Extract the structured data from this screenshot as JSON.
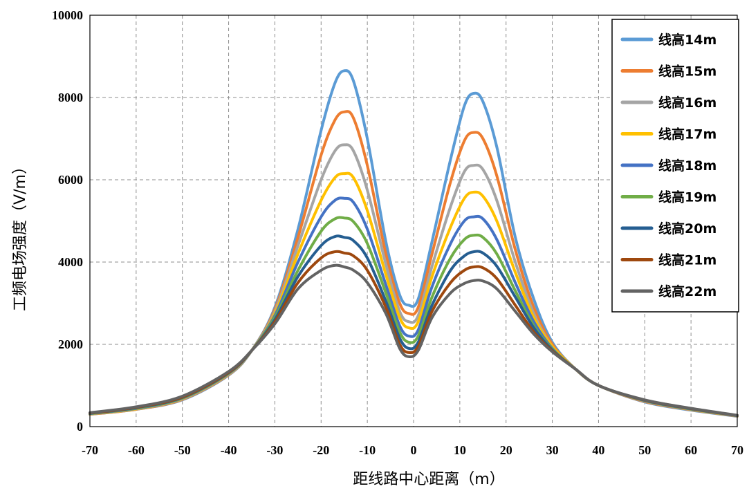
{
  "chart_data": {
    "type": "line",
    "title": "",
    "xlabel": "距线路中心距离（m）",
    "ylabel": "工频电场强度（V/m）",
    "xlim": [
      -70,
      70
    ],
    "ylim": [
      0,
      10000
    ],
    "xticks": [
      -70,
      -60,
      -50,
      -40,
      -30,
      -20,
      -10,
      0,
      10,
      20,
      30,
      40,
      50,
      60,
      70
    ],
    "yticks": [
      0,
      2000,
      4000,
      6000,
      8000,
      10000
    ],
    "grid": true,
    "legend_position": "top-right",
    "x": [
      -70,
      -60,
      -50,
      -40,
      -35,
      -30,
      -25,
      -20,
      -17,
      -15,
      -13,
      -10,
      -6,
      -3,
      -1,
      1,
      4,
      8,
      11,
      13,
      15,
      18,
      22,
      26,
      30,
      35,
      40,
      50,
      60,
      70
    ],
    "series": [
      {
        "name": "线高14m",
        "color": "#5B9BD5",
        "values": [
          300,
          420,
          650,
          1250,
          1850,
          2900,
          4800,
          7200,
          8350,
          8650,
          8400,
          7000,
          4500,
          3200,
          2950,
          3100,
          4500,
          6500,
          7800,
          8100,
          7900,
          6800,
          4600,
          3100,
          2050,
          1400,
          1000,
          600,
          400,
          250
        ]
      },
      {
        "name": "线高15m",
        "color": "#ED7D31",
        "values": [
          300,
          420,
          660,
          1260,
          1850,
          2850,
          4600,
          6600,
          7450,
          7650,
          7500,
          6350,
          4200,
          3000,
          2750,
          2900,
          4200,
          5950,
          6950,
          7150,
          7000,
          6100,
          4300,
          2900,
          2000,
          1400,
          1000,
          610,
          410,
          255
        ]
      },
      {
        "name": "线高16m",
        "color": "#A5A5A5",
        "values": [
          305,
          425,
          670,
          1270,
          1850,
          2800,
          4400,
          6000,
          6700,
          6850,
          6700,
          5750,
          3950,
          2800,
          2550,
          2700,
          3900,
          5350,
          6200,
          6350,
          6250,
          5500,
          4000,
          2750,
          1950,
          1400,
          1000,
          620,
          415,
          260
        ]
      },
      {
        "name": "线高17m",
        "color": "#FFC000",
        "values": [
          310,
          430,
          680,
          1280,
          1850,
          2750,
          4200,
          5500,
          6050,
          6150,
          6050,
          5250,
          3700,
          2650,
          2400,
          2550,
          3650,
          4850,
          5550,
          5700,
          5600,
          5000,
          3750,
          2650,
          1950,
          1400,
          1000,
          625,
          420,
          262
        ]
      },
      {
        "name": "线高18m",
        "color": "#4472C4",
        "values": [
          315,
          440,
          690,
          1290,
          1850,
          2700,
          4000,
          5100,
          5500,
          5550,
          5450,
          4800,
          3450,
          2450,
          2200,
          2350,
          3400,
          4450,
          5000,
          5100,
          5050,
          4550,
          3500,
          2550,
          1900,
          1400,
          1000,
          630,
          425,
          265
        ]
      },
      {
        "name": "线高19m",
        "color": "#70AD47",
        "values": [
          320,
          450,
          700,
          1300,
          1850,
          2650,
          3800,
          4750,
          5050,
          5070,
          4980,
          4450,
          3250,
          2300,
          2050,
          2200,
          3150,
          4100,
          4550,
          4650,
          4600,
          4200,
          3300,
          2450,
          1880,
          1400,
          1000,
          635,
          430,
          268
        ]
      },
      {
        "name": "线高20m",
        "color": "#255E91",
        "values": [
          325,
          460,
          710,
          1310,
          1850,
          2600,
          3650,
          4400,
          4620,
          4600,
          4520,
          4100,
          3050,
          2150,
          1900,
          2050,
          2950,
          3800,
          4150,
          4250,
          4220,
          3900,
          3150,
          2400,
          1860,
          1400,
          1000,
          640,
          435,
          270
        ]
      },
      {
        "name": "线高21m",
        "color": "#9E480E",
        "values": [
          330,
          470,
          720,
          1320,
          1850,
          2550,
          3500,
          4100,
          4250,
          4220,
          4150,
          3800,
          2900,
          2000,
          1800,
          1950,
          2800,
          3500,
          3800,
          3880,
          3860,
          3600,
          2950,
          2300,
          1840,
          1400,
          1000,
          645,
          440,
          272
        ]
      },
      {
        "name": "线高22m",
        "color": "#636363",
        "values": [
          340,
          480,
          740,
          1340,
          1850,
          2500,
          3350,
          3800,
          3920,
          3880,
          3800,
          3500,
          2750,
          1900,
          1700,
          1850,
          2650,
          3250,
          3480,
          3550,
          3540,
          3350,
          2800,
          2250,
          1820,
          1400,
          1000,
          650,
          445,
          275
        ]
      }
    ]
  }
}
